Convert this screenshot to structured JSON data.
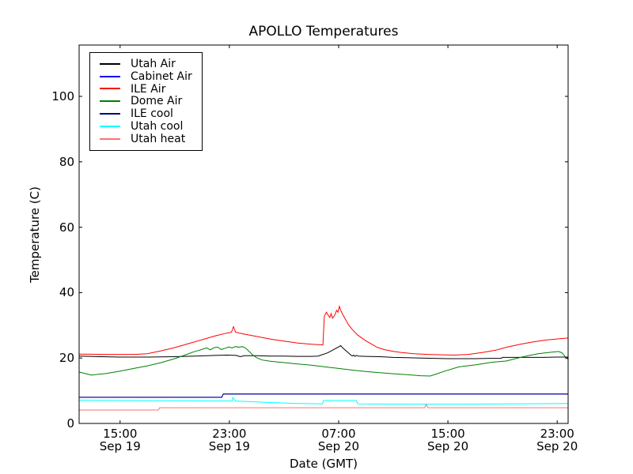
{
  "chart_data": {
    "type": "line",
    "title": "APOLLO Temperatures",
    "xlabel": "Date (GMT)",
    "ylabel": "Temperature (C)",
    "grid": false,
    "legend_position": "upper left",
    "x_unit_note": "hours after Sep 19 12:00 GMT",
    "xlim": [
      0,
      35.8
    ],
    "ylim": [
      0,
      115.7
    ],
    "x_ticks": [
      {
        "t": 3,
        "time": "15:00",
        "date": "Sep 19"
      },
      {
        "t": 11,
        "time": "23:00",
        "date": "Sep 19"
      },
      {
        "t": 19,
        "time": "07:00",
        "date": "Sep 20"
      },
      {
        "t": 27,
        "time": "15:00",
        "date": "Sep 20"
      },
      {
        "t": 35,
        "time": "23:00",
        "date": "Sep 20"
      }
    ],
    "y_ticks": [
      0,
      20,
      40,
      60,
      80,
      100
    ],
    "axis_color": "#000000",
    "series": [
      {
        "name": "Utah Air",
        "color": "#000000",
        "points": [
          [
            0,
            20.6
          ],
          [
            1.5,
            20.4
          ],
          [
            3,
            20.3
          ],
          [
            5,
            20.3
          ],
          [
            7,
            20.4
          ],
          [
            8.5,
            20.6
          ],
          [
            10,
            20.8
          ],
          [
            10.8,
            20.9
          ],
          [
            11.5,
            20.8
          ],
          [
            11.8,
            20.4
          ],
          [
            12.1,
            20.7
          ],
          [
            13,
            20.7
          ],
          [
            14,
            20.6
          ],
          [
            15,
            20.6
          ],
          [
            16,
            20.5
          ],
          [
            17,
            20.5
          ],
          [
            17.5,
            20.6
          ],
          [
            18.2,
            21.6
          ],
          [
            18.6,
            22.5
          ],
          [
            19.0,
            23.4
          ],
          [
            19.15,
            23.8
          ],
          [
            19.3,
            23.1
          ],
          [
            19.6,
            22.0
          ],
          [
            19.9,
            20.9
          ],
          [
            20.0,
            20.6
          ],
          [
            20.1,
            20.9
          ],
          [
            20.2,
            20.5
          ],
          [
            20.3,
            20.8
          ],
          [
            20.45,
            20.6
          ],
          [
            21,
            20.5
          ],
          [
            22,
            20.4
          ],
          [
            23,
            20.2
          ],
          [
            24,
            20.1
          ],
          [
            25,
            20.0
          ],
          [
            26,
            19.9
          ],
          [
            27,
            19.8
          ],
          [
            28,
            19.8
          ],
          [
            29,
            19.8
          ],
          [
            30,
            19.9
          ],
          [
            30.9,
            19.9
          ],
          [
            31.0,
            20.2
          ],
          [
            32,
            20.2
          ],
          [
            33,
            20.2
          ],
          [
            34,
            20.2
          ],
          [
            35,
            20.3
          ],
          [
            35.8,
            20.3
          ]
        ]
      },
      {
        "name": "Cabinet Air",
        "color": "#0000ff",
        "points": [
          [
            0,
            8.0
          ],
          [
            10.45,
            8.0
          ],
          [
            10.55,
            9.0
          ],
          [
            35.8,
            9.0
          ]
        ]
      },
      {
        "name": "ILE Air",
        "color": "#ff0000",
        "points": [
          [
            0,
            21.2
          ],
          [
            2,
            21.1
          ],
          [
            4,
            21.1
          ],
          [
            5,
            21.3
          ],
          [
            6,
            22.2
          ],
          [
            7,
            23.2
          ],
          [
            8,
            24.4
          ],
          [
            9,
            25.6
          ],
          [
            10,
            26.8
          ],
          [
            10.8,
            27.6
          ],
          [
            11.15,
            27.9
          ],
          [
            11.3,
            29.6
          ],
          [
            11.45,
            27.9
          ],
          [
            12,
            27.4
          ],
          [
            13,
            26.6
          ],
          [
            14,
            25.8
          ],
          [
            15,
            25.2
          ],
          [
            16,
            24.6
          ],
          [
            17,
            24.2
          ],
          [
            17.85,
            24.0
          ],
          [
            17.95,
            32.8
          ],
          [
            18.1,
            34.0
          ],
          [
            18.25,
            33.0
          ],
          [
            18.35,
            32.4
          ],
          [
            18.45,
            33.6
          ],
          [
            18.55,
            32.2
          ],
          [
            18.7,
            33.0
          ],
          [
            18.85,
            34.6
          ],
          [
            18.95,
            34.0
          ],
          [
            19.05,
            35.8
          ],
          [
            19.15,
            34.6
          ],
          [
            19.3,
            33.3
          ],
          [
            19.5,
            31.8
          ],
          [
            19.7,
            30.3
          ],
          [
            20,
            28.7
          ],
          [
            20.4,
            27.0
          ],
          [
            20.9,
            25.5
          ],
          [
            21.4,
            24.3
          ],
          [
            21.8,
            23.3
          ],
          [
            22.3,
            22.6
          ],
          [
            22.9,
            22.1
          ],
          [
            23.6,
            21.7
          ],
          [
            24.5,
            21.3
          ],
          [
            25.5,
            21.1
          ],
          [
            26.5,
            21.0
          ],
          [
            27.5,
            20.9
          ],
          [
            28.5,
            21.1
          ],
          [
            29.5,
            21.7
          ],
          [
            30.5,
            22.4
          ],
          [
            31.3,
            23.3
          ],
          [
            32.3,
            24.2
          ],
          [
            33.2,
            24.9
          ],
          [
            34.2,
            25.5
          ],
          [
            35.2,
            25.9
          ],
          [
            35.8,
            26.1
          ]
        ]
      },
      {
        "name": "Dome Air",
        "color": "#008000",
        "points": [
          [
            0,
            15.7
          ],
          [
            0.9,
            14.8
          ],
          [
            2,
            15.3
          ],
          [
            3,
            16.0
          ],
          [
            4,
            16.8
          ],
          [
            5,
            17.6
          ],
          [
            6,
            18.6
          ],
          [
            7,
            19.8
          ],
          [
            7.8,
            21.0
          ],
          [
            8.4,
            21.9
          ],
          [
            8.8,
            22.4
          ],
          [
            9.1,
            22.8
          ],
          [
            9.35,
            23.1
          ],
          [
            9.6,
            22.5
          ],
          [
            9.9,
            23.2
          ],
          [
            10.15,
            23.3
          ],
          [
            10.4,
            22.6
          ],
          [
            10.7,
            23.0
          ],
          [
            10.95,
            23.4
          ],
          [
            11.2,
            23.1
          ],
          [
            11.45,
            23.5
          ],
          [
            11.7,
            23.3
          ],
          [
            11.95,
            23.5
          ],
          [
            12.2,
            23.0
          ],
          [
            12.4,
            22.2
          ],
          [
            12.7,
            21.0
          ],
          [
            13.0,
            20.1
          ],
          [
            13.4,
            19.4
          ],
          [
            14,
            19.0
          ],
          [
            15,
            18.6
          ],
          [
            16,
            18.2
          ],
          [
            17,
            17.8
          ],
          [
            18,
            17.3
          ],
          [
            19,
            16.8
          ],
          [
            20,
            16.3
          ],
          [
            21,
            15.9
          ],
          [
            22,
            15.5
          ],
          [
            23,
            15.2
          ],
          [
            24,
            14.9
          ],
          [
            25,
            14.6
          ],
          [
            25.7,
            14.5
          ],
          [
            26.2,
            15.2
          ],
          [
            26.7,
            15.9
          ],
          [
            27.8,
            17.3
          ],
          [
            29,
            17.9
          ],
          [
            30.2,
            18.7
          ],
          [
            31.3,
            19.1
          ],
          [
            32.4,
            20.3
          ],
          [
            33.6,
            21.3
          ],
          [
            34.6,
            21.8
          ],
          [
            35.1,
            22.0
          ],
          [
            35.35,
            21.6
          ],
          [
            35.55,
            20.6
          ],
          [
            35.8,
            19.6
          ]
        ]
      },
      {
        "name": "ILE cool",
        "color": "#000080",
        "points": [
          [
            0,
            8.0
          ],
          [
            10.45,
            8.0
          ],
          [
            10.55,
            9.0
          ],
          [
            35.8,
            9.0
          ]
        ]
      },
      {
        "name": "Utah cool",
        "color": "#00ffff",
        "points": [
          [
            0,
            7.1
          ],
          [
            4,
            7.0
          ],
          [
            8,
            6.9
          ],
          [
            11.2,
            6.85
          ],
          [
            11.25,
            7.9
          ],
          [
            11.45,
            6.85
          ],
          [
            14,
            6.4
          ],
          [
            16,
            6.1
          ],
          [
            17.8,
            6.0
          ],
          [
            17.9,
            7.0
          ],
          [
            20.3,
            7.0
          ],
          [
            20.4,
            6.0
          ],
          [
            24,
            5.9
          ],
          [
            28,
            5.9
          ],
          [
            32,
            6.0
          ],
          [
            35.8,
            6.1
          ]
        ]
      },
      {
        "name": "Utah heat",
        "color": "#fa7272",
        "points": [
          [
            0,
            4.1
          ],
          [
            5.8,
            4.1
          ],
          [
            5.9,
            4.8
          ],
          [
            25.3,
            4.8
          ],
          [
            25.4,
            5.8
          ],
          [
            25.55,
            4.8
          ],
          [
            35.8,
            4.8
          ]
        ]
      }
    ]
  }
}
